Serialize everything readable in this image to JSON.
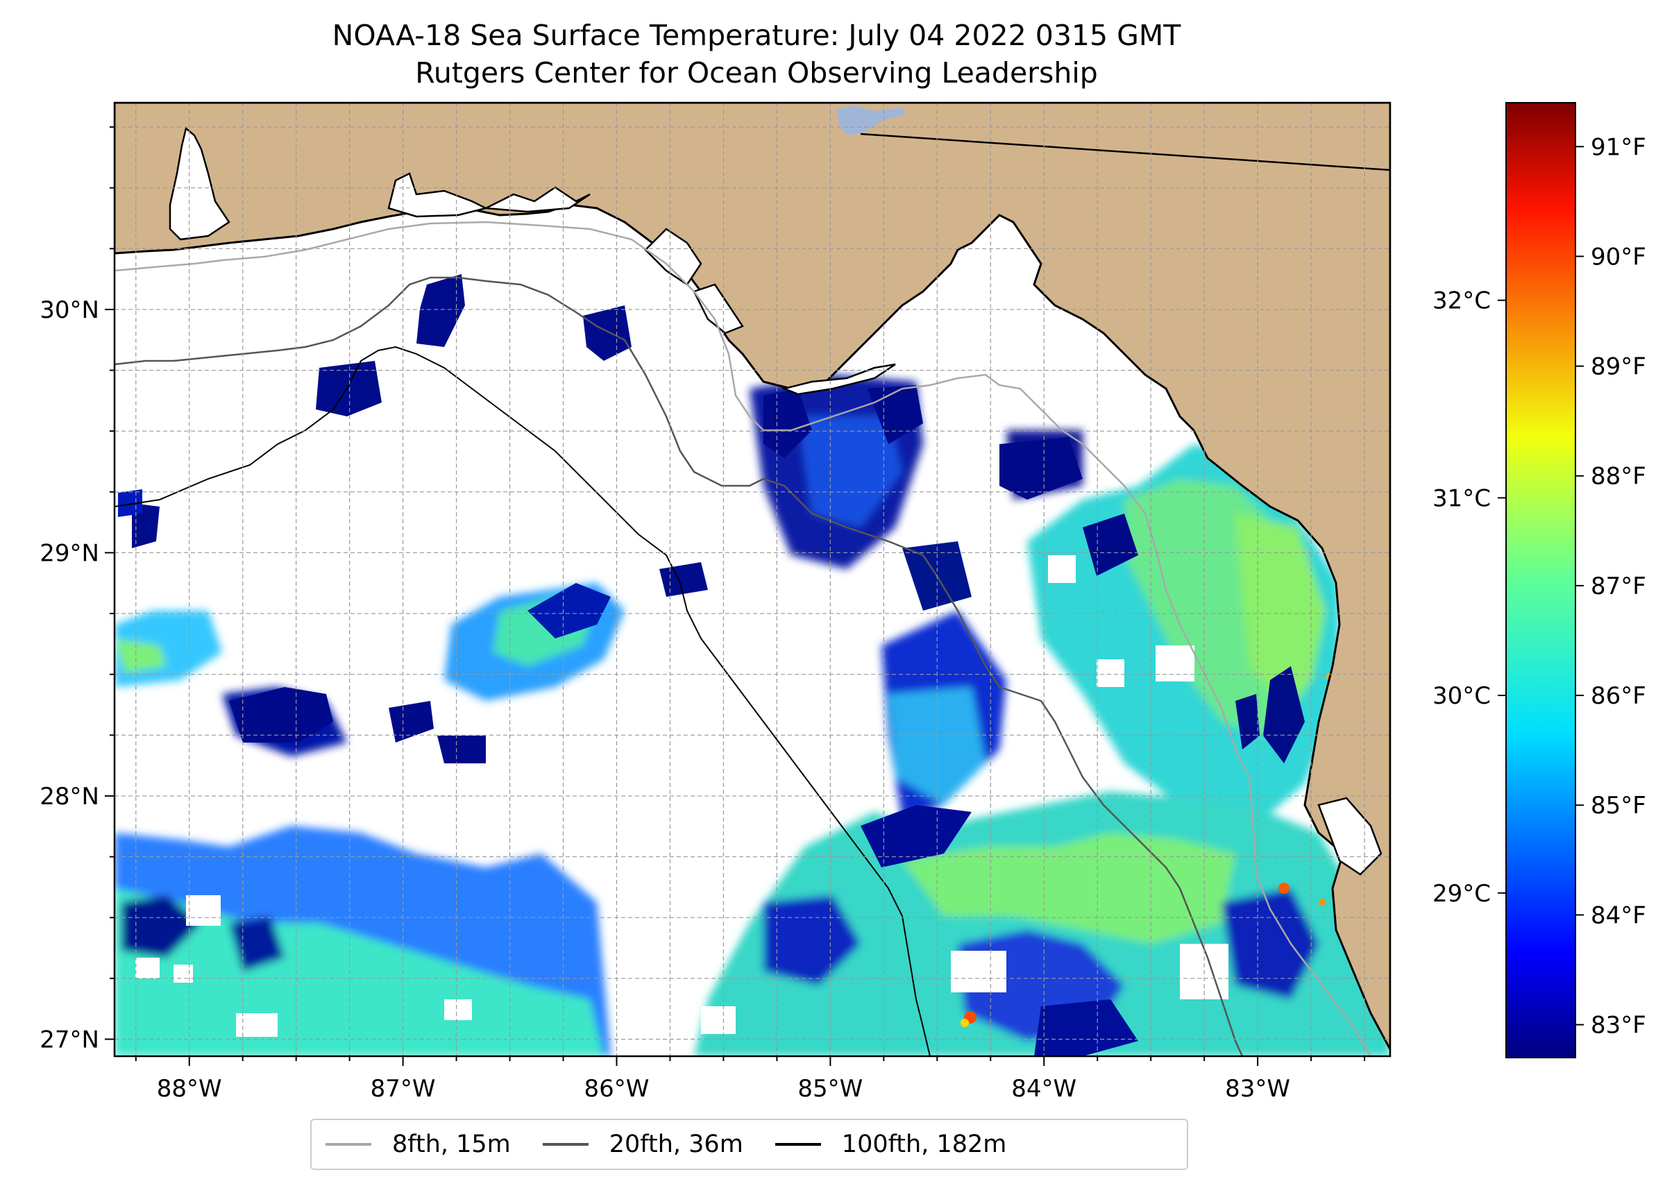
{
  "title": {
    "line1": "NOAA-18 Sea Surface Temperature: July 04 2022 0315 GMT",
    "line2": "Rutgers Center for Ocean Observing Leadership"
  },
  "map": {
    "extent": {
      "lon_min": -88.35,
      "lon_max": -82.38,
      "lat_min": 26.93,
      "lat_max": 30.85
    },
    "lon_ticks": [
      {
        "value": -88,
        "label": "88°W"
      },
      {
        "value": -87,
        "label": "87°W"
      },
      {
        "value": -86,
        "label": "86°W"
      },
      {
        "value": -85,
        "label": "85°W"
      },
      {
        "value": -84,
        "label": "84°W"
      },
      {
        "value": -83,
        "label": "83°W"
      }
    ],
    "lat_ticks": [
      {
        "value": 30,
        "label": "30°N"
      },
      {
        "value": 29,
        "label": "29°N"
      },
      {
        "value": 28,
        "label": "28°N"
      },
      {
        "value": 27,
        "label": "27°N"
      }
    ],
    "grid": true,
    "land_color": "#d2b48c",
    "no_data_color": "#ffffff",
    "water_body_color": "#9fb6d8"
  },
  "colorbar": {
    "colormap": "jet",
    "fahrenheit_ticks": [
      {
        "value": 83,
        "label": "83°F"
      },
      {
        "value": 84,
        "label": "84°F"
      },
      {
        "value": 85,
        "label": "85°F"
      },
      {
        "value": 86,
        "label": "86°F"
      },
      {
        "value": 87,
        "label": "87°F"
      },
      {
        "value": 88,
        "label": "88°F"
      },
      {
        "value": 89,
        "label": "89°F"
      },
      {
        "value": 90,
        "label": "90°F"
      },
      {
        "value": 91,
        "label": "91°F"
      }
    ],
    "celsius_ticks": [
      {
        "value": 29,
        "label": "29°C"
      },
      {
        "value": 30,
        "label": "30°C"
      },
      {
        "value": 31,
        "label": "31°C"
      },
      {
        "value": 32,
        "label": "32°C"
      }
    ],
    "range_f": [
      82.7,
      91.4
    ]
  },
  "legend": {
    "items": [
      {
        "label": "8fth, 15m",
        "color": "#a9a9a9"
      },
      {
        "label": "20fth, 36m",
        "color": "#555555"
      },
      {
        "label": "100fth, 182m",
        "color": "#000000"
      }
    ],
    "placement": "bottom-center"
  }
}
